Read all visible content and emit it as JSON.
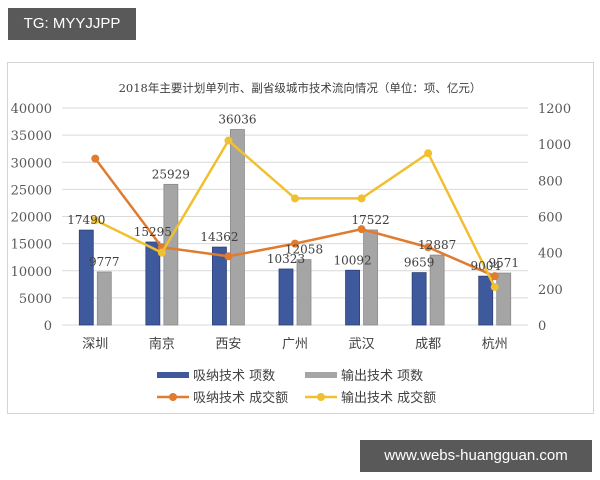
{
  "watermark_top": "TG: MYYJJPP",
  "watermark_bottom": "www.webs-huangguan.com",
  "colors": {
    "absorb_bar": "#3f5a9c",
    "export_bar": "#a5a5a5",
    "absorb_line": "#e07b30",
    "export_line": "#f0c030",
    "grid": "#d9d9d9"
  },
  "chart_data": {
    "type": "bar",
    "title": "2018年主要计划单列市、副省级城市技术流向情况（单位：项、亿元）",
    "categories": [
      "深圳",
      "南京",
      "西安",
      "广州",
      "武汉",
      "成都",
      "杭州"
    ],
    "series": [
      {
        "name": "吸纳技术 项数",
        "type": "bar",
        "axis": "left",
        "values": [
          17490,
          15295,
          14362,
          10323,
          10092,
          9659,
          9004
        ]
      },
      {
        "name": "输出技术 项数",
        "type": "bar",
        "axis": "left",
        "values": [
          9777,
          25929,
          36036,
          12058,
          17522,
          12887,
          9571
        ]
      },
      {
        "name": "吸纳技术 成交额",
        "type": "line",
        "axis": "right",
        "values": [
          920,
          430,
          380,
          450,
          530,
          430,
          270
        ]
      },
      {
        "name": "输出技术 成交额",
        "type": "line",
        "axis": "right",
        "values": [
          580,
          400,
          1020,
          700,
          700,
          950,
          210
        ]
      }
    ],
    "left_axis": {
      "ylim": [
        0,
        40000
      ],
      "ticks": [
        "0",
        "5000",
        "10000",
        "15000",
        "20000",
        "25000",
        "30000",
        "35000",
        "40000"
      ]
    },
    "right_axis": {
      "ylim": [
        0,
        1200
      ],
      "ticks": [
        "0",
        "200",
        "400",
        "600",
        "800",
        "1000",
        "1200"
      ]
    },
    "grid": true,
    "legend_position": "bottom",
    "legend": [
      "吸纳技术 项数",
      "输出技术 项数",
      "吸纳技术 成交额",
      "输出技术 成交额"
    ]
  }
}
